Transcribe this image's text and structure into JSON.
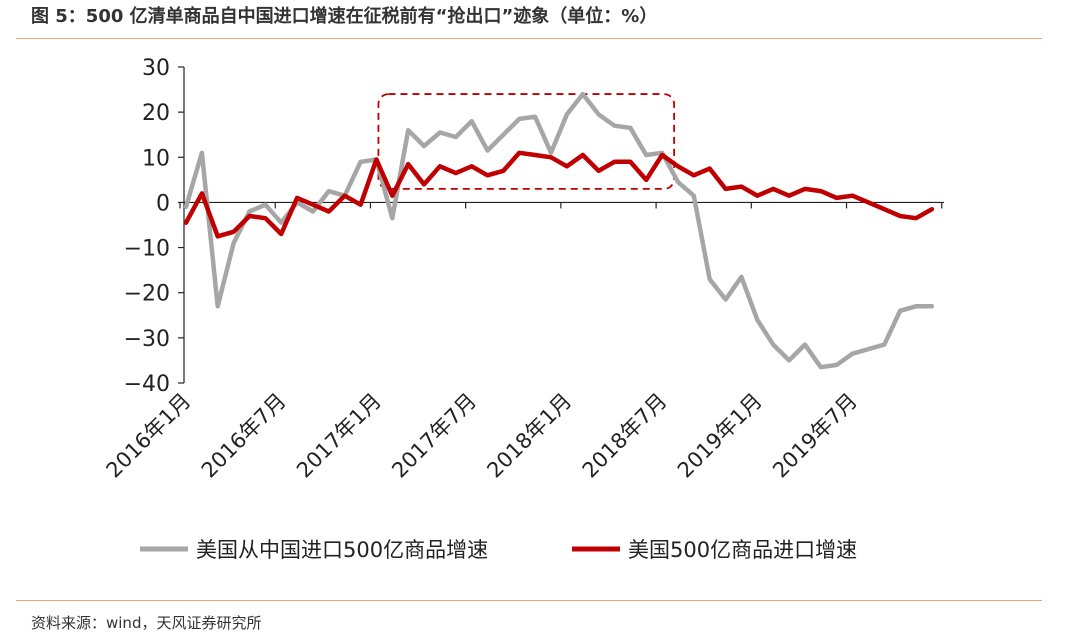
{
  "header": {
    "title": "图 5：500 亿清单商品自中国进口增速在征税前有“抢出口”迹象（单位：%）"
  },
  "footer": {
    "source": "资料来源：wind，天风证券研究所"
  },
  "chart_data": {
    "type": "line",
    "title": "图 5：500 亿清单商品自中国进口增速在征税前有“抢出口”迹象（单位：%）",
    "ylabel": "",
    "xlabel": "",
    "ylim": [
      -40,
      30
    ],
    "yticks": [
      30,
      20,
      10,
      0,
      -10,
      -20,
      -30,
      -40
    ],
    "ytick_labels": [
      "30",
      "20",
      "10",
      "0",
      "−10",
      "−20",
      "−30",
      "−40"
    ],
    "x": [
      "2016年1月",
      "2016年2月",
      "2016年3月",
      "2016年4月",
      "2016年5月",
      "2016年6月",
      "2016年7月",
      "2016年8月",
      "2016年9月",
      "2016年10月",
      "2016年11月",
      "2016年12月",
      "2017年1月",
      "2017年2月",
      "2017年3月",
      "2017年4月",
      "2017年5月",
      "2017年6月",
      "2017年7月",
      "2017年8月",
      "2017年9月",
      "2017年10月",
      "2017年11月",
      "2017年12月",
      "2018年1月",
      "2018年2月",
      "2018年3月",
      "2018年4月",
      "2018年5月",
      "2018年6月",
      "2018年7月",
      "2018年8月",
      "2018年9月",
      "2018年10月",
      "2018年11月",
      "2018年12月",
      "2019年1月",
      "2019年2月",
      "2019年3月",
      "2019年4月",
      "2019年5月",
      "2019年6月",
      "2019年7月",
      "2019年8月",
      "2019年9月",
      "2019年10月",
      "2019年11月",
      "2019年12月"
    ],
    "xtick_labels": [
      "2016年1月",
      "2016年7月",
      "2017年1月",
      "2017年7月",
      "2018年1月",
      "2018年7月",
      "2019年1月",
      "2019年7月"
    ],
    "xtick_indices": [
      0,
      6,
      12,
      18,
      24,
      30,
      36,
      42
    ],
    "series": [
      {
        "name": "美国从中国进口500亿商品增速",
        "color": "#a6a6a6",
        "values": [
          -1,
          11,
          -23,
          -9,
          -2,
          -0.5,
          -4.5,
          0,
          -2,
          2.5,
          1.5,
          9,
          9.5,
          -3.5,
          16,
          12.5,
          15.5,
          14.5,
          18,
          11.5,
          15,
          18.5,
          19,
          11,
          19.5,
          24,
          19.5,
          17,
          16.5,
          10.5,
          11,
          4.5,
          1.5,
          -17,
          -21.5,
          -16.5,
          -26,
          -31.5,
          -35,
          -31.5,
          -36.5,
          -36,
          -33.5,
          -32.5,
          -31.5,
          -24,
          -23,
          -23
        ]
      },
      {
        "name": "美国500亿商品进口增速",
        "color": "#c00000",
        "values": [
          -4.5,
          2,
          -7.5,
          -6.5,
          -3,
          -3.5,
          -7,
          1,
          -0.5,
          -2,
          1.5,
          -0.5,
          9.5,
          1.5,
          8.5,
          4,
          8,
          6.5,
          8,
          6,
          7,
          11,
          10.5,
          10,
          8,
          10.5,
          7,
          9,
          9,
          5,
          10.5,
          8,
          6,
          7.5,
          3,
          3.5,
          1.5,
          3,
          1.5,
          3,
          2.5,
          1,
          1.5,
          0,
          -1.5,
          -3,
          -3.5,
          -1.5
        ]
      }
    ],
    "annotation_box": {
      "from": "2017年1月",
      "to": "2018年7月",
      "ymin": 3,
      "ymax": 24,
      "style": "dashed",
      "color": "#c00000"
    },
    "legend_position": "bottom",
    "grid": false
  }
}
